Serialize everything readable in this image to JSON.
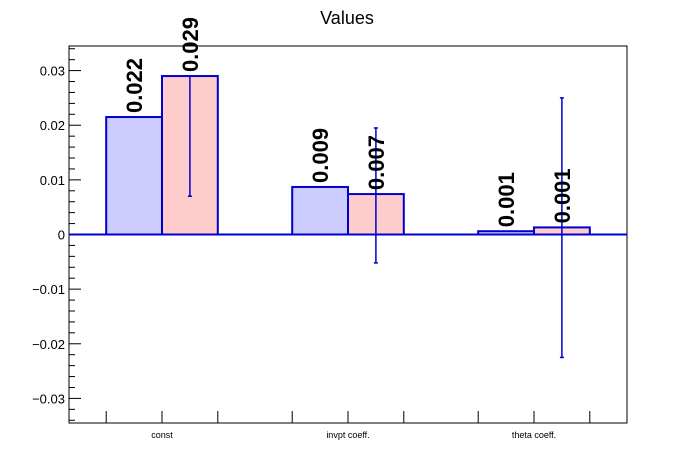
{
  "chart_data": {
    "type": "bar",
    "title": "Values",
    "categories": [
      "const",
      "invpt coeff.",
      "theta coeff."
    ],
    "series": [
      {
        "values": [
          0.0215,
          0.0087,
          0.0006
        ],
        "labels": [
          "0.022",
          "0.009",
          "0.001"
        ],
        "fill": "#ccccff",
        "stroke": "#0000cc"
      },
      {
        "values": [
          0.029,
          0.0074,
          0.0013
        ],
        "labels": [
          "0.029",
          "0.007",
          "0.001"
        ],
        "err_low": [
          0.007,
          -0.0052,
          -0.0225
        ],
        "err_high": [
          0.029,
          0.0195,
          0.025
        ],
        "fill": "#ffcccc",
        "stroke": "#0000cc"
      }
    ],
    "ylim": [
      -0.0345,
      0.0345
    ],
    "yticks": [
      {
        "v": 0.03,
        "label": "0.03"
      },
      {
        "v": 0.02,
        "label": "0.02"
      },
      {
        "v": 0.01,
        "label": "0.01"
      },
      {
        "v": 0,
        "label": "0"
      },
      {
        "v": -0.01,
        "label": "−0.01"
      },
      {
        "v": -0.02,
        "label": "−0.02"
      },
      {
        "v": -0.03,
        "label": "−0.03"
      }
    ],
    "grid": false,
    "legend": "none"
  }
}
